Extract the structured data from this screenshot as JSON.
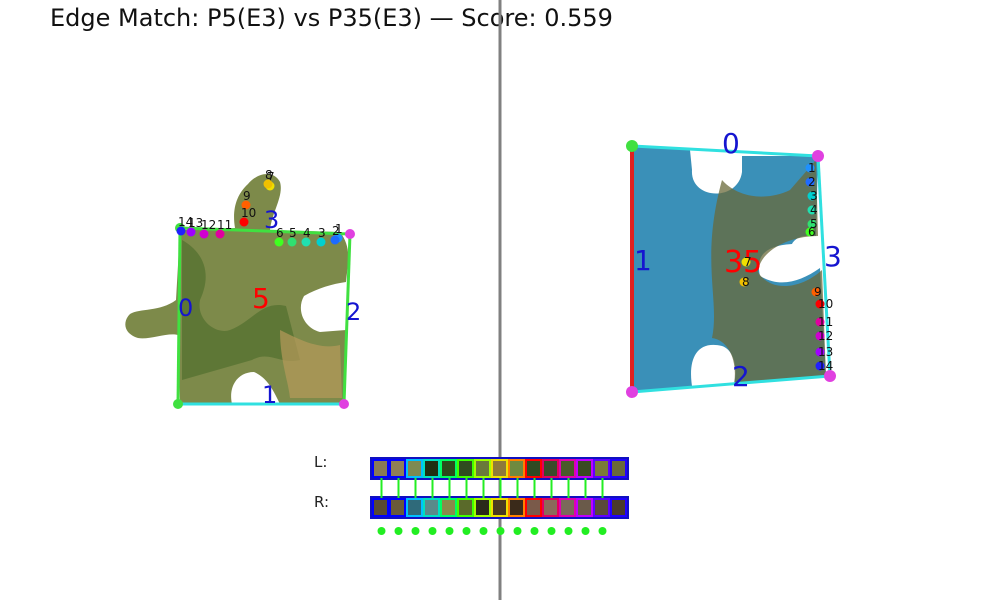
{
  "title": "Edge Match: P5(E3) vs P35(E3) — Score: 0.559",
  "left_piece": {
    "id_label": "5",
    "edge_labels": [
      "0",
      "1",
      "2",
      "3"
    ],
    "point_labels": [
      "1",
      "2",
      "3",
      "4",
      "5",
      "6",
      "7",
      "8",
      "9",
      "10",
      "11",
      "12",
      "13",
      "14"
    ]
  },
  "right_piece": {
    "id_label": "35",
    "edge_labels": [
      "0",
      "1",
      "2",
      "3"
    ],
    "point_labels": [
      "1",
      "2",
      "3",
      "4",
      "5",
      "6",
      "7",
      "8",
      "9",
      "10",
      "11",
      "12",
      "13",
      "14"
    ]
  },
  "swatches": {
    "left_label": "L:",
    "right_label": "R:",
    "left_colors": [
      "#8a7a55",
      "#8f7f57",
      "#7d8a52",
      "#1f2f12",
      "#2c4a1a",
      "#2f4d1f",
      "#6a7a3a",
      "#8f7a3a",
      "#6f8a3f",
      "#2f4a23",
      "#3a4b2a",
      "#4a5a2a",
      "#3a4a22",
      "#7a7a3a",
      "#6a6a3a"
    ],
    "right_colors": [
      "#5a4a30",
      "#6a5a3a",
      "#2f6a7a",
      "#5a8a8a",
      "#8a8a4a",
      "#5a6a2a",
      "#2a2a1a",
      "#4a3a22",
      "#3a2a1a",
      "#7a5a4a",
      "#8a6a5a",
      "#7a6a5a",
      "#6a5a4a",
      "#5a4a3a",
      "#4a3a2a"
    ],
    "border_colors": [
      "#0000ff",
      "#0000ff",
      "#00c0ff",
      "#00e0c0",
      "#00ff60",
      "#40ff00",
      "#a0ff00",
      "#f0e000",
      "#ff8000",
      "#ff0000",
      "#e00060",
      "#e000b0",
      "#c000ff",
      "#6000ff",
      "#2000ff"
    ]
  },
  "colors": {
    "divider": "#808080",
    "edge_highlight": "#e02020",
    "edge_normal": "#30e0e0",
    "edge_green": "#40e040",
    "label_blue": "#1515d0",
    "label_red": "#ff0000",
    "corner_magenta": "#e040e0",
    "corner_green": "#40e040",
    "match_dot": "#22ee22"
  }
}
